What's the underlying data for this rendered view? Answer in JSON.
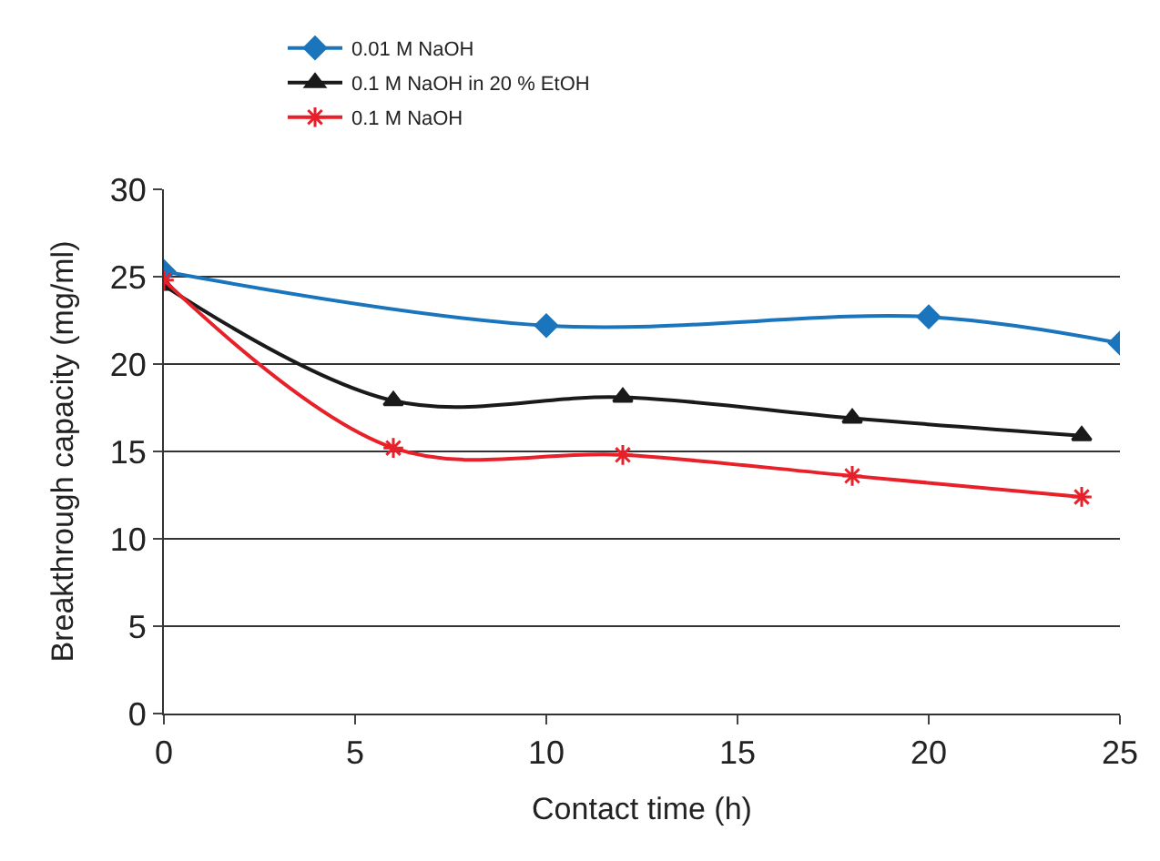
{
  "chart_data": {
    "type": "line",
    "xlabel": "Contact time (h)",
    "ylabel": "Breakthrough capacity (mg/ml)",
    "xlim": [
      0,
      25
    ],
    "xticks": [
      0,
      5,
      10,
      15,
      20,
      25
    ],
    "ylim": [
      0,
      30
    ],
    "yticks": [
      0,
      5,
      10,
      15,
      20,
      25,
      30
    ],
    "grid": "y",
    "legend": "top left",
    "series": [
      {
        "name": "0.01 M NaOH",
        "color": "#1a75bc",
        "marker": "diamond",
        "x": [
          0,
          10,
          20,
          25
        ],
        "values": [
          25.3,
          22.2,
          22.7,
          21.2
        ]
      },
      {
        "name": "0.1 M NaOH in 20 % EtOH",
        "color": "#1a1a1a",
        "marker": "triangle",
        "x": [
          0,
          6,
          12,
          18,
          24
        ],
        "values": [
          24.5,
          17.9,
          18.1,
          16.9,
          15.9
        ]
      },
      {
        "name": "0.1 M NaOH",
        "color": "#e8202a",
        "marker": "cross",
        "x": [
          0,
          6,
          12,
          18,
          24
        ],
        "values": [
          24.8,
          15.2,
          14.8,
          13.6,
          12.4
        ]
      }
    ]
  }
}
